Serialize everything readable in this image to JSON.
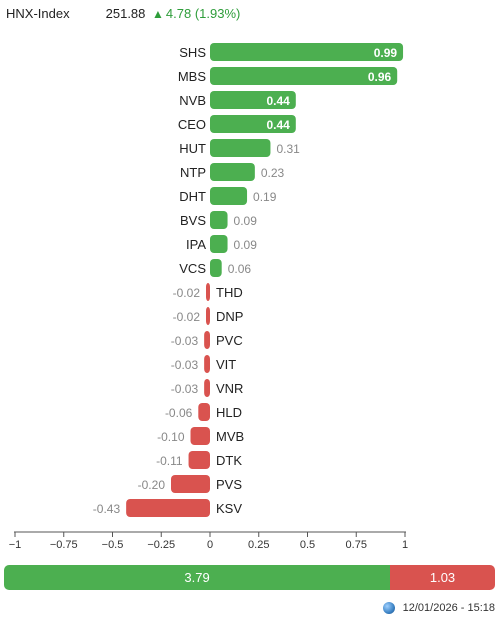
{
  "header": {
    "index_name": "HNX-Index",
    "index_value": "251.88",
    "change_arrow": "▲",
    "change": "4.78 (1.93%)"
  },
  "colors": {
    "positive": "#4caf50",
    "negative": "#d9534f",
    "label_muted": "#888888"
  },
  "chart_data": {
    "type": "bar",
    "orientation": "horizontal",
    "categories": [
      "SHS",
      "MBS",
      "NVB",
      "CEO",
      "HUT",
      "NTP",
      "DHT",
      "BVS",
      "IPA",
      "VCS",
      "THD",
      "DNP",
      "PVC",
      "VIT",
      "VNR",
      "HLD",
      "MVB",
      "DTK",
      "PVS",
      "KSV"
    ],
    "values": [
      0.99,
      0.96,
      0.44,
      0.44,
      0.31,
      0.23,
      0.19,
      0.09,
      0.09,
      0.06,
      -0.02,
      -0.02,
      -0.03,
      -0.03,
      -0.03,
      -0.06,
      -0.1,
      -0.11,
      -0.2,
      -0.43
    ],
    "value_labels": [
      "0.99",
      "0.96",
      "0.44",
      "0.44",
      "0.31",
      "0.23",
      "0.19",
      "0.09",
      "0.09",
      "0.06",
      "-0.02",
      "-0.02",
      "-0.03",
      "-0.03",
      "-0.03",
      "-0.06",
      "-0.10",
      "-0.11",
      "-0.20",
      "-0.43"
    ],
    "xlim": [
      -1,
      1
    ],
    "ticks": [
      -1,
      -0.75,
      -0.5,
      -0.25,
      0,
      0.25,
      0.5,
      0.75,
      1
    ],
    "tick_labels": [
      "−1",
      "−0.75",
      "−0.5",
      "−0.25",
      "0",
      "0.25",
      "0.5",
      "0.75",
      "1"
    ],
    "grid": false
  },
  "summary": {
    "positive_total": 3.79,
    "negative_total": 1.03,
    "positive_label": "3.79",
    "negative_label": "1.03"
  },
  "footer": {
    "timestamp": "12/01/2026 - 15:18",
    "icon": "globe-icon"
  }
}
